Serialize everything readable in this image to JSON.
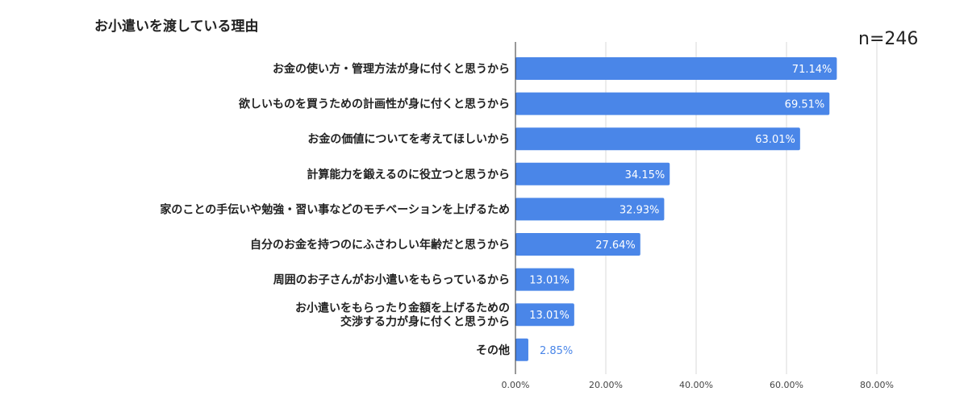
{
  "header": {
    "title": "お小遣いを渡している理由",
    "sample_size": "n=246"
  },
  "colors": {
    "bar": "#4a86e8",
    "label_inside": "#ffffff",
    "label_outside": "#4a86e8",
    "grid": "#d9d9d9",
    "axis": "#333333"
  },
  "chart_data": {
    "type": "bar",
    "orientation": "horizontal",
    "title": "お小遣いを渡している理由",
    "categories": [
      [
        "お金の使い方・管理方法が身に付くと思うから"
      ],
      [
        "欲しいものを買うための計画性が身に付くと思うから"
      ],
      [
        "お金の価値についてを考えてほしいから"
      ],
      [
        "計算能力を鍛えるのに役立つと思うから"
      ],
      [
        "家のことの手伝いや勉強・習い事などのモチベーションを上げるため"
      ],
      [
        "自分のお金を持つのにふさわしい年齢だと思うから"
      ],
      [
        "周囲のお子さんがお小遣いをもらっているから"
      ],
      [
        "お小遣いをもらったり金額を上げるための",
        "交渉する力が身に付くと思うから"
      ],
      [
        "その他"
      ]
    ],
    "values": [
      71.14,
      69.51,
      63.01,
      34.15,
      32.93,
      27.64,
      13.01,
      13.01,
      2.85
    ],
    "value_labels": [
      "71.14%",
      "69.51%",
      "63.01%",
      "34.15%",
      "32.93%",
      "27.64%",
      "13.01%",
      "13.01%",
      "2.85%"
    ],
    "xlim": [
      0,
      80
    ],
    "x_ticks": [
      0,
      20,
      40,
      60,
      80
    ],
    "x_tick_labels": [
      "0.00%",
      "20.00%",
      "40.00%",
      "60.00%",
      "80.00%"
    ],
    "grid": true,
    "legend": "none"
  }
}
